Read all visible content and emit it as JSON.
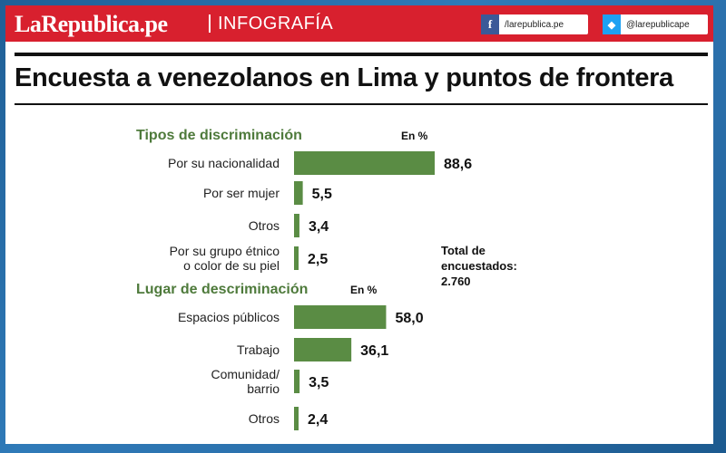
{
  "header": {
    "brand": "LaRepublica.pe",
    "section": "INFOGRAFÍA",
    "facebook": "/larepublica.pe",
    "twitter": "@larepublicape"
  },
  "title": "Encuesta a venezolanos en Lima y puntos de frontera",
  "total": {
    "label1": "Total de",
    "label2": "encuestados:",
    "value": "2.760"
  },
  "colors": {
    "bar": "#5a8c44",
    "section_title": "#4e7a3b",
    "header": "#d8202e"
  },
  "chart_data": [
    {
      "type": "bar",
      "orientation": "horizontal",
      "title": "Tipos de discriminación",
      "unit": "En %",
      "categories": [
        "Por su nacionalidad",
        "Por ser mujer",
        "Otros",
        "Por su grupo étnico o color de su piel"
      ],
      "category_lines": [
        [
          "Por su nacionalidad"
        ],
        [
          "Por ser mujer"
        ],
        [
          "Otros"
        ],
        [
          "Por su grupo étnico",
          "o color de su piel"
        ]
      ],
      "values": [
        88.6,
        5.5,
        3.4,
        2.5
      ],
      "value_labels": [
        "88,6",
        "5,5",
        "3,4",
        "2,5"
      ]
    },
    {
      "type": "bar",
      "orientation": "horizontal",
      "title": "Lugar de descriminación",
      "unit": "En %",
      "categories": [
        "Espacios públicos",
        "Trabajo",
        "Comunidad/ barrio",
        "Otros"
      ],
      "category_lines": [
        [
          "Espacios públicos"
        ],
        [
          "Trabajo"
        ],
        [
          "Comunidad/",
          "barrio"
        ],
        [
          "Otros"
        ]
      ],
      "values": [
        58.0,
        36.1,
        3.5,
        2.4
      ],
      "value_labels": [
        "58,0",
        "36,1",
        "3,5",
        "2,4"
      ]
    }
  ]
}
